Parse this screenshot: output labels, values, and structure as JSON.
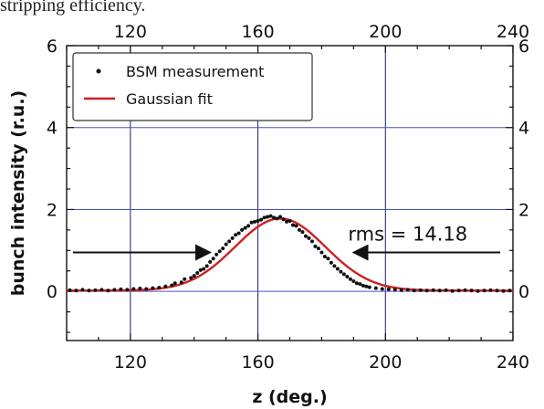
{
  "caption_fragment": "stripping efficiency.",
  "chart_data": {
    "type": "scatter",
    "title": "",
    "xlabel": "z (deg.)",
    "ylabel": "bunch intensity (r.u.)",
    "xlim": [
      100,
      240
    ],
    "ylim": [
      -1.2,
      6
    ],
    "xticks": [
      120,
      160,
      200,
      240
    ],
    "yticks": [
      0,
      2,
      4,
      6
    ],
    "grid": true,
    "legend_position": "top-left",
    "series": [
      {
        "name": "BSM measurement",
        "kind": "points",
        "color": "#111111",
        "x": [
          101,
          103,
          105,
          107,
          109,
          111,
          113,
          115,
          117,
          119,
          121,
          123,
          125,
          127,
          129,
          131,
          133,
          134,
          136,
          137,
          139,
          140,
          141,
          142,
          143,
          144,
          145,
          146,
          147,
          148,
          149,
          150,
          151,
          152,
          153,
          154,
          155,
          156,
          157,
          158,
          159,
          160,
          161,
          162,
          163,
          164,
          165,
          166,
          167,
          168,
          169,
          170,
          171,
          172,
          173,
          174,
          175,
          176,
          177,
          178,
          179,
          180,
          181,
          182,
          183,
          184,
          185,
          186,
          187,
          188,
          189,
          190,
          191,
          192,
          193,
          194,
          195,
          197,
          199,
          201,
          203,
          205,
          207,
          209,
          211,
          213,
          215,
          217,
          219,
          221,
          223,
          225,
          227,
          229,
          231,
          233,
          235,
          237,
          239
        ],
        "y": [
          0.03,
          0.02,
          0.04,
          0.02,
          0.03,
          0.04,
          0.02,
          0.04,
          0.05,
          0.04,
          0.06,
          0.07,
          0.06,
          0.08,
          0.09,
          0.12,
          0.15,
          0.2,
          0.22,
          0.3,
          0.33,
          0.38,
          0.45,
          0.52,
          0.55,
          0.62,
          0.72,
          0.8,
          0.9,
          0.98,
          1.05,
          1.15,
          1.22,
          1.3,
          1.38,
          1.42,
          1.5,
          1.55,
          1.6,
          1.68,
          1.7,
          1.72,
          1.75,
          1.8,
          1.82,
          1.84,
          1.8,
          1.78,
          1.82,
          1.76,
          1.7,
          1.72,
          1.62,
          1.6,
          1.5,
          1.45,
          1.35,
          1.3,
          1.22,
          1.1,
          1.05,
          0.95,
          0.85,
          0.8,
          0.7,
          0.62,
          0.55,
          0.48,
          0.42,
          0.36,
          0.3,
          0.25,
          0.2,
          0.18,
          0.14,
          0.12,
          0.1,
          0.08,
          0.06,
          0.05,
          0.04,
          0.03,
          0.04,
          0.02,
          0.03,
          0.02,
          0.03,
          0.02,
          0.03,
          0.01,
          0.02,
          0.03,
          0.02,
          0.01,
          0.02,
          0.03,
          0.02,
          0.01,
          0.02
        ]
      },
      {
        "name": "Gaussian fit",
        "kind": "line",
        "color": "#d02020",
        "amplitude": 1.76,
        "mean": 167,
        "sigma": 14.18,
        "offset": 0.02
      }
    ],
    "annotations": [
      {
        "text": "rms = 14.18",
        "x": 207,
        "y": 1.4
      }
    ],
    "arrows": [
      {
        "name": "left-arrow",
        "from_x": 102,
        "to_x": 145,
        "y": 0.95
      },
      {
        "name": "right-arrow",
        "from_x": 236,
        "to_x": 190,
        "y": 0.95
      }
    ]
  }
}
